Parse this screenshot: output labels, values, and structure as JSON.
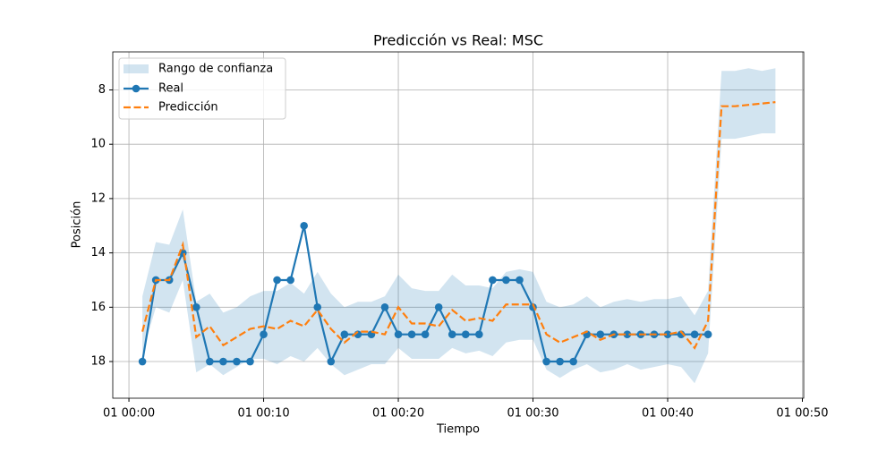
{
  "chart_data": {
    "type": "line",
    "title": "Predicción vs Real: MSC",
    "x_label": "Tiempo",
    "y_label": "Posición",
    "x": [
      1,
      2,
      3,
      4,
      5,
      6,
      7,
      8,
      9,
      10,
      11,
      12,
      13,
      14,
      15,
      16,
      17,
      18,
      19,
      20,
      21,
      22,
      23,
      24,
      25,
      26,
      27,
      28,
      29,
      30,
      31,
      32,
      33,
      34,
      35,
      36,
      37,
      38,
      39,
      40,
      41,
      42,
      43,
      44,
      45,
      46,
      47,
      48
    ],
    "series": [
      {
        "name": "Real",
        "color": "#1f77b4",
        "style": "solid",
        "marker": true,
        "values": [
          18,
          15,
          15,
          14,
          16,
          18,
          18,
          18,
          18,
          17,
          15,
          15,
          13,
          16,
          18,
          17,
          17,
          17,
          16,
          17,
          17,
          17,
          16,
          17,
          17,
          17,
          15,
          15,
          15,
          16,
          18,
          18,
          18,
          17,
          17,
          17,
          17,
          17,
          17,
          17,
          17,
          17,
          17,
          null,
          null,
          null,
          null,
          null
        ]
      },
      {
        "name": "Predicción",
        "color": "#ff7f0e",
        "style": "dashed",
        "marker": false,
        "values": [
          16.9,
          15.0,
          15.0,
          13.7,
          17.1,
          16.7,
          17.4,
          17.1,
          16.8,
          16.7,
          16.8,
          16.5,
          16.7,
          16.1,
          16.8,
          17.3,
          16.9,
          16.9,
          17.0,
          16.0,
          16.6,
          16.6,
          16.7,
          16.1,
          16.5,
          16.4,
          16.5,
          15.9,
          15.9,
          15.9,
          17.0,
          17.3,
          17.1,
          16.9,
          17.2,
          17.0,
          17.0,
          17.0,
          17.0,
          17.0,
          16.9,
          17.5,
          16.5,
          8.6,
          8.6,
          8.55,
          8.5,
          8.45
        ]
      }
    ],
    "band": {
      "name": "Rango de confianza",
      "color": "#1f77b4",
      "lower": [
        15.6,
        13.6,
        13.7,
        12.4,
        15.8,
        15.5,
        16.2,
        16.0,
        15.6,
        15.4,
        15.4,
        15.1,
        15.5,
        14.7,
        15.5,
        16.0,
        15.8,
        15.8,
        15.6,
        14.8,
        15.3,
        15.4,
        15.4,
        14.8,
        15.2,
        15.2,
        15.3,
        14.7,
        14.6,
        14.7,
        15.8,
        16.0,
        15.9,
        15.6,
        16.0,
        15.8,
        15.7,
        15.8,
        15.7,
        15.7,
        15.6,
        16.3,
        15.4,
        7.3,
        7.3,
        7.2,
        7.3,
        7.2
      ],
      "upper": [
        17.7,
        16.0,
        16.2,
        15.0,
        18.4,
        18.1,
        18.5,
        18.2,
        17.9,
        17.9,
        18.1,
        17.8,
        18.0,
        17.5,
        18.1,
        18.5,
        18.3,
        18.1,
        18.1,
        17.5,
        17.9,
        17.9,
        17.9,
        17.5,
        17.7,
        17.6,
        17.8,
        17.3,
        17.2,
        17.2,
        18.3,
        18.6,
        18.3,
        18.1,
        18.4,
        18.3,
        18.1,
        18.3,
        18.2,
        18.1,
        18.2,
        18.8,
        17.7,
        9.8,
        9.8,
        9.7,
        9.6,
        9.6
      ]
    },
    "xlim": [
      -1.2,
      50.1
    ],
    "xticks": [
      {
        "value": 0,
        "label": "01 00:00"
      },
      {
        "value": 10,
        "label": "01 00:10"
      },
      {
        "value": 20,
        "label": "01 00:20"
      },
      {
        "value": 30,
        "label": "01 00:30"
      },
      {
        "value": 40,
        "label": "01 00:40"
      },
      {
        "value": 50,
        "label": "01 00:50"
      }
    ],
    "ylim": [
      6.6,
      19.35
    ],
    "y_inverted": true,
    "yticks": [
      8,
      10,
      12,
      14,
      16,
      18
    ],
    "grid": true,
    "legend": "upper-left"
  }
}
